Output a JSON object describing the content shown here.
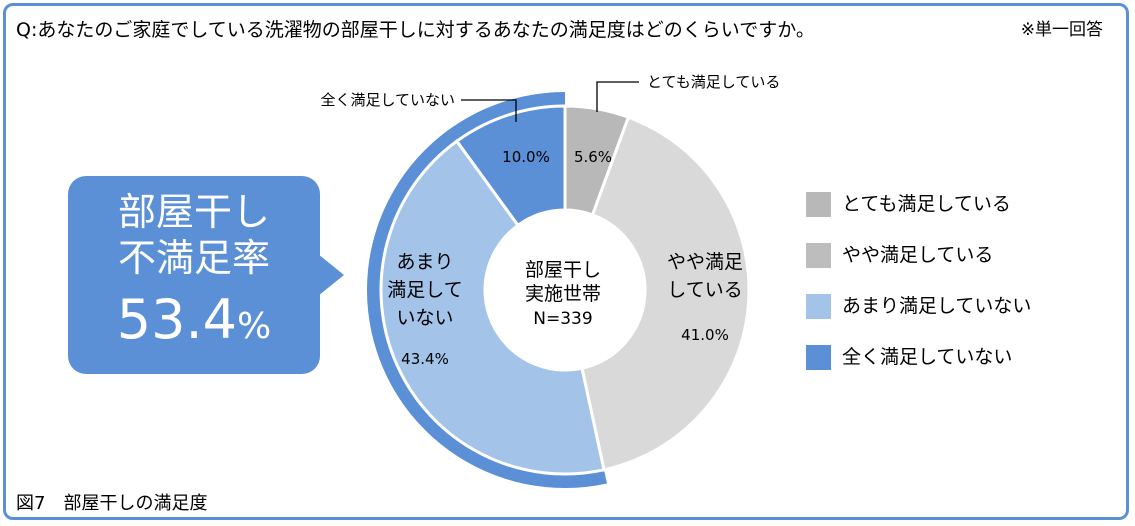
{
  "question": "Q:あなたのご家庭でしている洗濯物の部屋干しに対するあなたの満足度はどのくらいですか。",
  "note": "※単一回答",
  "figure_caption": "図7　部屋干しの満足度",
  "callout": {
    "line1": "部屋干し",
    "line2": "不満足率",
    "value_number": "53.4",
    "value_unit": "%"
  },
  "colors": {
    "frame": "#5b8fd6",
    "very_satisfied": "#b8b8b8",
    "somewhat_satisfied": "#d9d9d9",
    "not_very_satisfied": "#a3c4e8",
    "not_at_all_satisfied": "#5b8fd6"
  },
  "chart_data": {
    "type": "pie",
    "subtype": "donut",
    "center_label": [
      "部屋干し",
      "実施世帯",
      "N=339"
    ],
    "slices": [
      {
        "name": "とても満足している",
        "value": 5.6,
        "label": "5.6%",
        "color": "#b8b8b8"
      },
      {
        "name": "やや満足している",
        "value": 41.0,
        "label": "41.0%",
        "inner_text": [
          "やや満足",
          "している"
        ],
        "color": "#d9d9d9"
      },
      {
        "name": "あまり満足していない",
        "value": 43.4,
        "label": "43.4%",
        "inner_text": [
          "あまり",
          "満足して",
          "いない"
        ],
        "color": "#a3c4e8"
      },
      {
        "name": "全く満足していない",
        "value": 10.0,
        "label": "10.0%",
        "color": "#5b8fd6"
      }
    ],
    "outer_ring_highlight": {
      "value": 53.4,
      "color": "#5b8fd6"
    },
    "leader_labels": {
      "very_satisfied": "とても満足している",
      "not_at_all": "全く満足していない"
    },
    "legend": [
      {
        "label": "とても満足している",
        "color": "#b8b8b8"
      },
      {
        "label": "やや満足している",
        "color": "#bdbdbd"
      },
      {
        "label": "あまり満足していない",
        "color": "#a3c4e8"
      },
      {
        "label": "全く満足していない",
        "color": "#5b8fd6"
      }
    ]
  }
}
